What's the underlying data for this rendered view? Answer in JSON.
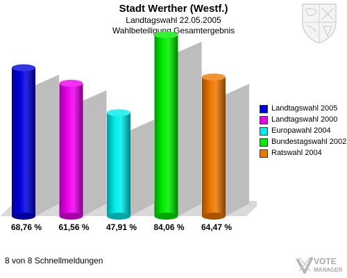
{
  "header": {
    "title": "Stadt Werther (Westf.)",
    "subtitle": "Landtagswahl 22.05.2005",
    "subtitle2": "Wahlbeteiligung Gesamtergebnis"
  },
  "footer": {
    "status": "8 von 8 Schnellmeldungen"
  },
  "logo": {
    "line1": "VOTE",
    "line2": "MANAGER"
  },
  "icons": {
    "crest": "coat-of-arms-icon",
    "logo": "vote-manager-logo-icon"
  },
  "chart_data": {
    "type": "bar",
    "title": "Wahlbeteiligung Gesamtergebnis",
    "categories": [
      "Landtagswahl 2005",
      "Landtagswahl 2000",
      "Europawahl 2004",
      "Bundestagswahl 2002",
      "Ratswahl 2004"
    ],
    "values": [
      68.76,
      61.56,
      47.91,
      84.06,
      64.47
    ],
    "value_labels": [
      "68,76 %",
      "61,56 %",
      "47,91 %",
      "84,06 %",
      "64,47 %"
    ],
    "colors": [
      "#0000dd",
      "#ee00ee",
      "#00eeee",
      "#00ee00",
      "#ee7700"
    ],
    "ylim": [
      0,
      100
    ],
    "legend_position": "right",
    "grid": false
  }
}
